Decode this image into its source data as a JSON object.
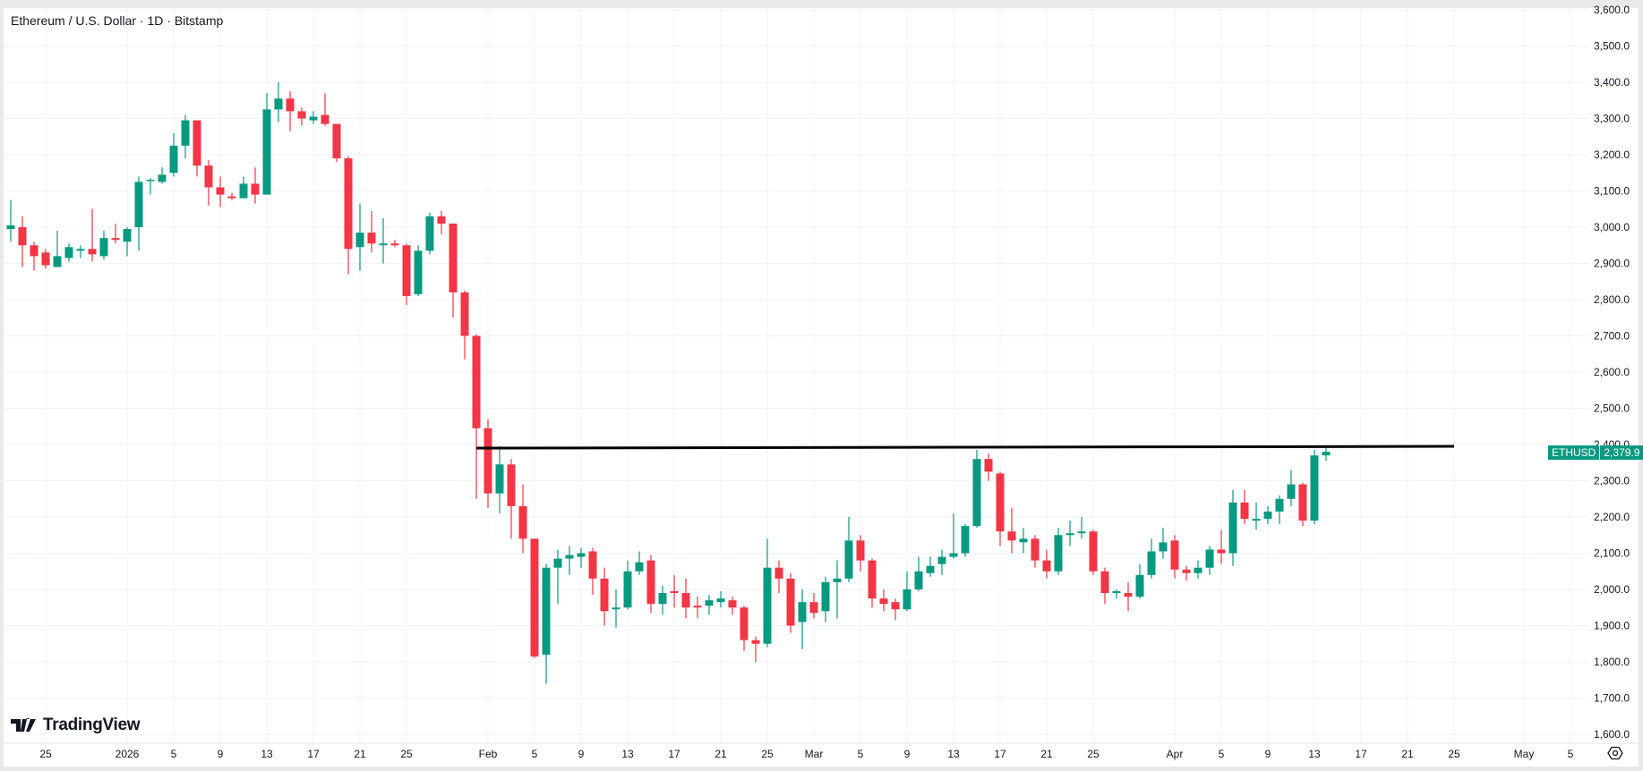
{
  "header": {
    "title": "Ethereum / U.S. Dollar · 1D · Bitstamp"
  },
  "logo": "TradingView",
  "last_price": {
    "symbol": "ETHUSD",
    "value": "2,379.9",
    "color": "#089981"
  },
  "colors": {
    "up": "#089981",
    "down": "#f23645",
    "line": "#000000"
  },
  "chart_data": {
    "type": "candlestick",
    "title": "Ethereum / U.S. Dollar · 1D · Bitstamp",
    "start_date": "2025-12-22",
    "ylim": [
      1600,
      3600
    ],
    "grid": true,
    "y_ticks": [
      "1,600.0",
      "1,700.0",
      "1,800.0",
      "1,900.0",
      "2,000.0",
      "2,100.0",
      "2,200.0",
      "2,300.0",
      "2,400.0",
      "2,500.0",
      "2,600.0",
      "2,700.0",
      "2,800.0",
      "2,900.0",
      "3,000.0",
      "3,100.0",
      "3,200.0",
      "3,300.0",
      "3,400.0",
      "3,500.0",
      "3,600.0"
    ],
    "x_ticks": [
      {
        "label": "25",
        "date": "2025-12-25"
      },
      {
        "label": "2026",
        "date": "2026-01-01"
      },
      {
        "label": "5",
        "date": "2026-01-05"
      },
      {
        "label": "9",
        "date": "2026-01-09"
      },
      {
        "label": "13",
        "date": "2026-01-13"
      },
      {
        "label": "17",
        "date": "2026-01-17"
      },
      {
        "label": "21",
        "date": "2026-01-21"
      },
      {
        "label": "25",
        "date": "2026-01-25"
      },
      {
        "label": "Feb",
        "date": "2026-02-01"
      },
      {
        "label": "5",
        "date": "2026-02-05"
      },
      {
        "label": "9",
        "date": "2026-02-09"
      },
      {
        "label": "13",
        "date": "2026-02-13"
      },
      {
        "label": "17",
        "date": "2026-02-17"
      },
      {
        "label": "21",
        "date": "2026-02-21"
      },
      {
        "label": "25",
        "date": "2026-02-25"
      },
      {
        "label": "Mar",
        "date": "2026-03-01"
      },
      {
        "label": "5",
        "date": "2026-03-05"
      },
      {
        "label": "9",
        "date": "2026-03-09"
      },
      {
        "label": "13",
        "date": "2026-03-13"
      },
      {
        "label": "17",
        "date": "2026-03-17"
      },
      {
        "label": "21",
        "date": "2026-03-21"
      },
      {
        "label": "25",
        "date": "2026-03-25"
      },
      {
        "label": "Apr",
        "date": "2026-04-01"
      },
      {
        "label": "5",
        "date": "2026-04-05"
      },
      {
        "label": "9",
        "date": "2026-04-09"
      },
      {
        "label": "13",
        "date": "2026-04-13"
      },
      {
        "label": "17",
        "date": "2026-04-17"
      },
      {
        "label": "21",
        "date": "2026-04-21"
      },
      {
        "label": "25",
        "date": "2026-04-25"
      },
      {
        "label": "May",
        "date": "2026-05-01"
      },
      {
        "label": "5",
        "date": "2026-05-05"
      }
    ],
    "ohlc": [
      [
        2995,
        3075,
        2960,
        3005
      ],
      [
        3000,
        3030,
        2890,
        2950
      ],
      [
        2950,
        2960,
        2880,
        2920
      ],
      [
        2930,
        2940,
        2885,
        2895
      ],
      [
        2890,
        2990,
        2890,
        2920
      ],
      [
        2915,
        2955,
        2905,
        2945
      ],
      [
        2935,
        2950,
        2915,
        2940
      ],
      [
        2940,
        3050,
        2905,
        2925
      ],
      [
        2920,
        2990,
        2910,
        2970
      ],
      [
        2970,
        3010,
        2955,
        2965
      ],
      [
        2960,
        3000,
        2920,
        2995
      ],
      [
        3000,
        3140,
        2935,
        3125
      ],
      [
        3130,
        3135,
        3090,
        3131
      ],
      [
        3125,
        3165,
        3120,
        3145
      ],
      [
        3150,
        3260,
        3140,
        3225
      ],
      [
        3225,
        3310,
        3190,
        3295
      ],
      [
        3295,
        3295,
        3140,
        3170
      ],
      [
        3170,
        3185,
        3060,
        3110
      ],
      [
        3110,
        3140,
        3055,
        3090
      ],
      [
        3085,
        3095,
        3075,
        3080
      ],
      [
        3080,
        3140,
        3080,
        3120
      ],
      [
        3120,
        3165,
        3065,
        3090
      ],
      [
        3090,
        3370,
        3090,
        3325
      ],
      [
        3325,
        3400,
        3290,
        3355
      ],
      [
        3355,
        3375,
        3265,
        3320
      ],
      [
        3320,
        3330,
        3280,
        3300
      ],
      [
        3295,
        3320,
        3285,
        3305
      ],
      [
        3310,
        3370,
        3280,
        3285
      ],
      [
        3285,
        3285,
        3180,
        3190
      ],
      [
        3190,
        3195,
        2870,
        2940
      ],
      [
        2945,
        3065,
        2880,
        2985
      ],
      [
        2985,
        3045,
        2930,
        2955
      ],
      [
        2950,
        3025,
        2900,
        2955
      ],
      [
        2955,
        2965,
        2945,
        2950
      ],
      [
        2950,
        2955,
        2785,
        2810
      ],
      [
        2815,
        2950,
        2810,
        2935
      ],
      [
        2935,
        3040,
        2925,
        3030
      ],
      [
        3030,
        3045,
        2980,
        3010
      ],
      [
        3010,
        3010,
        2750,
        2820
      ],
      [
        2820,
        2825,
        2635,
        2700
      ],
      [
        2700,
        2705,
        2250,
        2445
      ],
      [
        2445,
        2470,
        2225,
        2265
      ],
      [
        2265,
        2395,
        2210,
        2345
      ],
      [
        2345,
        2360,
        2140,
        2230
      ],
      [
        2230,
        2290,
        2100,
        2140
      ],
      [
        2140,
        2140,
        1810,
        1815
      ],
      [
        1820,
        2070,
        1740,
        2060
      ],
      [
        2060,
        2110,
        1960,
        2085
      ],
      [
        2085,
        2120,
        2040,
        2095
      ],
      [
        2090,
        2115,
        2060,
        2100
      ],
      [
        2105,
        2115,
        1985,
        2030
      ],
      [
        2030,
        2060,
        1900,
        1940
      ],
      [
        1945,
        2000,
        1895,
        1950
      ],
      [
        1950,
        2080,
        1945,
        2050
      ],
      [
        2050,
        2105,
        2040,
        2075
      ],
      [
        2080,
        2095,
        1935,
        1960
      ],
      [
        1960,
        2010,
        1930,
        1990
      ],
      [
        1995,
        2040,
        1950,
        1990
      ],
      [
        1990,
        2030,
        1920,
        1950
      ],
      [
        1955,
        1980,
        1920,
        1950
      ],
      [
        1955,
        1985,
        1930,
        1970
      ],
      [
        1965,
        1995,
        1950,
        1975
      ],
      [
        1970,
        1980,
        1930,
        1950
      ],
      [
        1950,
        1955,
        1830,
        1860
      ],
      [
        1860,
        1870,
        1800,
        1850
      ],
      [
        1850,
        2140,
        1840,
        2060
      ],
      [
        2060,
        2080,
        1990,
        2030
      ],
      [
        2030,
        2045,
        1880,
        1900
      ],
      [
        1910,
        2000,
        1835,
        1965
      ],
      [
        1965,
        1990,
        1920,
        1935
      ],
      [
        1940,
        2035,
        1910,
        2020
      ],
      [
        2020,
        2080,
        1920,
        2030
      ],
      [
        2030,
        2200,
        2020,
        2135
      ],
      [
        2135,
        2150,
        2050,
        2080
      ],
      [
        2080,
        2085,
        1950,
        1975
      ],
      [
        1975,
        2000,
        1940,
        1960
      ],
      [
        1965,
        1975,
        1915,
        1945
      ],
      [
        1945,
        2050,
        1940,
        2000
      ],
      [
        2000,
        2090,
        1995,
        2050
      ],
      [
        2045,
        2090,
        2035,
        2065
      ],
      [
        2070,
        2110,
        2040,
        2090
      ],
      [
        2090,
        2210,
        2085,
        2100
      ],
      [
        2100,
        2180,
        2090,
        2175
      ],
      [
        2175,
        2385,
        2170,
        2360
      ],
      [
        2360,
        2375,
        2300,
        2325
      ],
      [
        2320,
        2325,
        2120,
        2160
      ],
      [
        2160,
        2225,
        2100,
        2135
      ],
      [
        2130,
        2170,
        2100,
        2140
      ],
      [
        2140,
        2150,
        2060,
        2080
      ],
      [
        2080,
        2110,
        2030,
        2050
      ],
      [
        2050,
        2170,
        2040,
        2150
      ],
      [
        2150,
        2190,
        2120,
        2155
      ],
      [
        2155,
        2200,
        2140,
        2160
      ],
      [
        2160,
        2165,
        2040,
        2050
      ],
      [
        2050,
        2060,
        1960,
        1990
      ],
      [
        1990,
        2000,
        1975,
        1995
      ],
      [
        1990,
        2020,
        1940,
        1980
      ],
      [
        1980,
        2070,
        1975,
        2040
      ],
      [
        2040,
        2140,
        2030,
        2105
      ],
      [
        2105,
        2170,
        2085,
        2130
      ],
      [
        2135,
        2150,
        2030,
        2055
      ],
      [
        2055,
        2065,
        2025,
        2045
      ],
      [
        2045,
        2080,
        2030,
        2060
      ],
      [
        2060,
        2120,
        2040,
        2110
      ],
      [
        2110,
        2165,
        2070,
        2100
      ],
      [
        2100,
        2275,
        2065,
        2240
      ],
      [
        2240,
        2275,
        2180,
        2195
      ],
      [
        2190,
        2240,
        2165,
        2195
      ],
      [
        2195,
        2230,
        2180,
        2215
      ],
      [
        2215,
        2260,
        2180,
        2250
      ],
      [
        2250,
        2330,
        2230,
        2290
      ],
      [
        2290,
        2295,
        2175,
        2190
      ],
      [
        2190,
        2385,
        2180,
        2370
      ],
      [
        2370,
        2390,
        2355,
        2380
      ]
    ],
    "annotations": [
      {
        "type": "horizontal-line",
        "price_start": 2390,
        "price_end": 2395,
        "date_start": "2026-01-31",
        "date_end": "2026-04-25"
      }
    ]
  }
}
